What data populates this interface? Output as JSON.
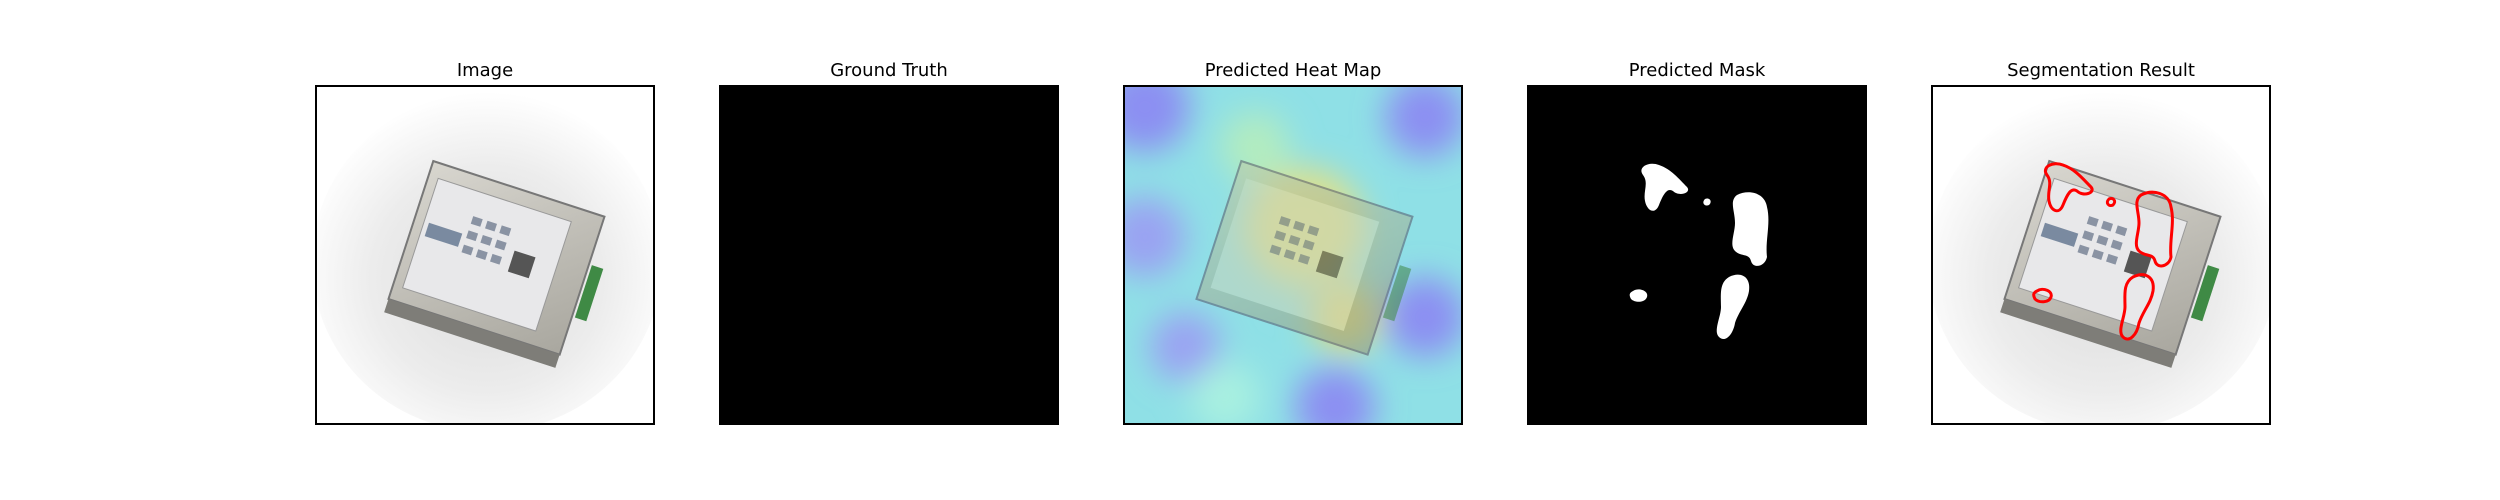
{
  "figure": {
    "panels": [
      {
        "title": "Image",
        "content": "photo of rotated electronic device with green connector on white background"
      },
      {
        "title": "Ground Truth",
        "content": "all-black mask"
      },
      {
        "title": "Predicted Heat Map",
        "content": "device photo overlaid with blue-cyan-yellow heat map"
      },
      {
        "title": "Predicted Mask",
        "content": "black background with white predicted blobs"
      },
      {
        "title": "Segmentation Result",
        "content": "device photo with red predicted contours"
      }
    ],
    "colors": {
      "frame": "#000000",
      "mask_bg": "#000000",
      "mask_fg": "#ffffff",
      "contour": "#ff0000",
      "heat_low": "#6a6cf0",
      "heat_mid": "#7fe6e6",
      "heat_high": "#e6e07a"
    }
  }
}
